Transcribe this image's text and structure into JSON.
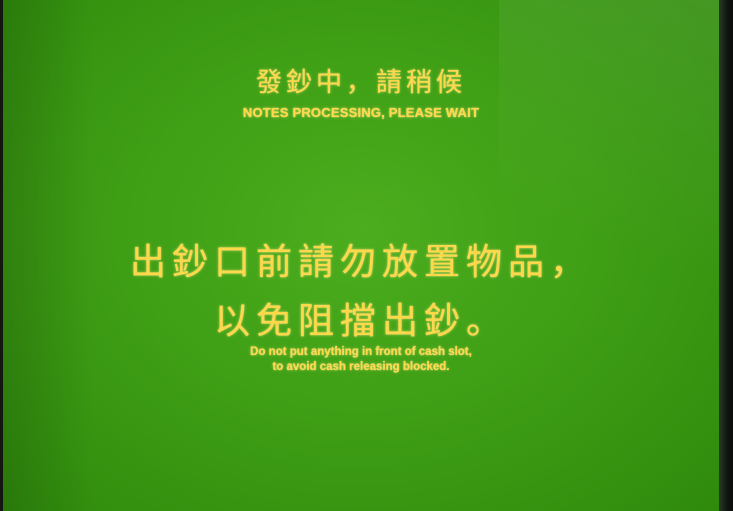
{
  "screen": {
    "title_cn": "發鈔中，請稍候",
    "title_en": "NOTES PROCESSING, PLEASE WAIT",
    "message_cn_line1": "出鈔口前請勿放置物品，",
    "message_cn_line2": "以免阻擋出鈔。",
    "message_en_line1": "Do not put anything in front of cash slot,",
    "message_en_line2": "to avoid cash releasing blocked."
  },
  "colors": {
    "screen_background": "#3f9f15",
    "text": "#ffd84a",
    "bezel": "#14170f"
  }
}
